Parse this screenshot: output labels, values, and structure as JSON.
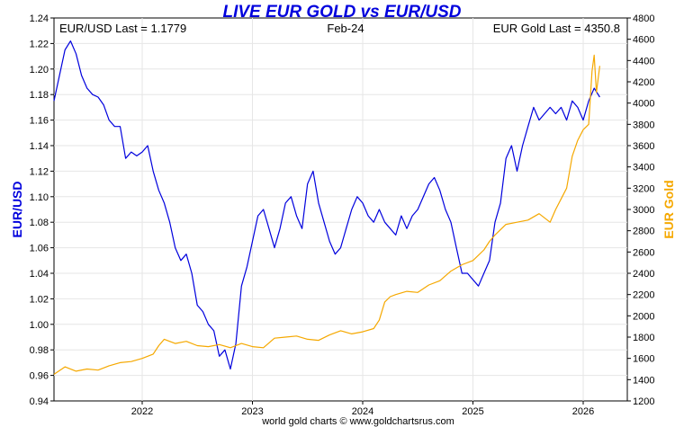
{
  "chart_data": {
    "type": "line",
    "title": "LIVE EUR GOLD vs EUR/USD",
    "period": "Feb-24",
    "footer": "world gold charts © www.goldchartsrus.com",
    "left_axis": {
      "label": "EUR/USD",
      "ylim": [
        0.94,
        1.24
      ],
      "ticks": [
        "0.94",
        "0.96",
        "0.98",
        "1.00",
        "1.02",
        "1.04",
        "1.06",
        "1.08",
        "1.10",
        "1.12",
        "1.14",
        "1.16",
        "1.18",
        "1.20",
        "1.22",
        "1.24"
      ],
      "color": "#0000dd"
    },
    "right_axis": {
      "label": "EUR Gold",
      "ylim": [
        1200,
        4800
      ],
      "ticks": [
        "1200",
        "1400",
        "1600",
        "1800",
        "2000",
        "2200",
        "2400",
        "2600",
        "2800",
        "3000",
        "3200",
        "3400",
        "3600",
        "3800",
        "4000",
        "4200",
        "4400",
        "4600",
        "4800"
      ],
      "color": "#f5a800"
    },
    "xlim": [
      2021.2,
      2026.4
    ],
    "x_ticks": [
      {
        "label": "2022",
        "value": 2022.0
      },
      {
        "label": "2023",
        "value": 2023.0
      },
      {
        "label": "2024",
        "value": 2024.0
      },
      {
        "label": "2025",
        "value": 2025.0
      },
      {
        "label": "2026",
        "value": 2026.0
      }
    ],
    "grid": true,
    "series": [
      {
        "name": "EUR/USD",
        "label": "EUR/USD Last = 1.1779",
        "axis": "left",
        "color": "#0000dd",
        "x": [
          2021.2,
          2021.25,
          2021.3,
          2021.35,
          2021.4,
          2021.45,
          2021.5,
          2021.55,
          2021.6,
          2021.65,
          2021.7,
          2021.75,
          2021.8,
          2021.85,
          2021.9,
          2021.95,
          2022.0,
          2022.05,
          2022.1,
          2022.15,
          2022.2,
          2022.25,
          2022.3,
          2022.35,
          2022.4,
          2022.45,
          2022.5,
          2022.55,
          2022.6,
          2022.65,
          2022.7,
          2022.75,
          2022.8,
          2022.85,
          2022.9,
          2022.95,
          2023.0,
          2023.05,
          2023.1,
          2023.15,
          2023.2,
          2023.25,
          2023.3,
          2023.35,
          2023.4,
          2023.45,
          2023.5,
          2023.55,
          2023.6,
          2023.65,
          2023.7,
          2023.75,
          2023.8,
          2023.85,
          2023.9,
          2023.95,
          2024.0,
          2024.05,
          2024.1,
          2024.15,
          2024.2,
          2024.25,
          2024.3,
          2024.35,
          2024.4,
          2024.45,
          2024.5,
          2024.55,
          2024.6,
          2024.65,
          2024.7,
          2024.75,
          2024.8,
          2024.85,
          2024.9,
          2024.95,
          2025.0,
          2025.05,
          2025.1,
          2025.15,
          2025.2,
          2025.25,
          2025.3,
          2025.35,
          2025.4,
          2025.45,
          2025.5,
          2025.55,
          2025.6,
          2025.65,
          2025.7,
          2025.75,
          2025.8,
          2025.85,
          2025.9,
          2025.95,
          2026.0,
          2026.05,
          2026.1,
          2026.15
        ],
        "values": [
          1.175,
          1.195,
          1.215,
          1.222,
          1.212,
          1.195,
          1.185,
          1.18,
          1.178,
          1.172,
          1.16,
          1.155,
          1.155,
          1.13,
          1.135,
          1.132,
          1.135,
          1.14,
          1.12,
          1.105,
          1.095,
          1.08,
          1.06,
          1.05,
          1.055,
          1.04,
          1.015,
          1.01,
          1.0,
          0.995,
          0.975,
          0.98,
          0.965,
          0.985,
          1.03,
          1.045,
          1.065,
          1.085,
          1.09,
          1.075,
          1.06,
          1.075,
          1.095,
          1.1,
          1.085,
          1.075,
          1.11,
          1.12,
          1.095,
          1.08,
          1.065,
          1.055,
          1.06,
          1.075,
          1.09,
          1.1,
          1.095,
          1.085,
          1.08,
          1.09,
          1.08,
          1.075,
          1.07,
          1.085,
          1.075,
          1.085,
          1.09,
          1.1,
          1.11,
          1.115,
          1.105,
          1.09,
          1.08,
          1.06,
          1.04,
          1.04,
          1.035,
          1.03,
          1.04,
          1.05,
          1.08,
          1.095,
          1.13,
          1.14,
          1.12,
          1.14,
          1.155,
          1.17,
          1.16,
          1.165,
          1.17,
          1.165,
          1.17,
          1.16,
          1.175,
          1.17,
          1.16,
          1.175,
          1.185,
          1.178
        ]
      },
      {
        "name": "EUR Gold",
        "label": "EUR Gold Last = 4350.8",
        "axis": "right",
        "color": "#f5a800",
        "x": [
          2021.2,
          2021.3,
          2021.4,
          2021.5,
          2021.6,
          2021.7,
          2021.8,
          2021.9,
          2022.0,
          2022.1,
          2022.15,
          2022.2,
          2022.3,
          2022.4,
          2022.5,
          2022.6,
          2022.7,
          2022.8,
          2022.9,
          2023.0,
          2023.1,
          2023.2,
          2023.3,
          2023.4,
          2023.5,
          2023.6,
          2023.7,
          2023.8,
          2023.9,
          2024.0,
          2024.1,
          2024.15,
          2024.2,
          2024.25,
          2024.3,
          2024.4,
          2024.5,
          2024.6,
          2024.7,
          2024.8,
          2024.9,
          2025.0,
          2025.1,
          2025.15,
          2025.2,
          2025.3,
          2025.4,
          2025.5,
          2025.6,
          2025.7,
          2025.75,
          2025.8,
          2025.85,
          2025.9,
          2025.95,
          2026.0,
          2026.05,
          2026.08,
          2026.1,
          2026.12,
          2026.15
        ],
        "values": [
          1450,
          1520,
          1480,
          1500,
          1490,
          1530,
          1560,
          1570,
          1600,
          1640,
          1720,
          1780,
          1740,
          1760,
          1720,
          1710,
          1730,
          1700,
          1740,
          1710,
          1700,
          1790,
          1800,
          1810,
          1780,
          1770,
          1820,
          1860,
          1830,
          1850,
          1880,
          1960,
          2130,
          2180,
          2200,
          2230,
          2220,
          2290,
          2330,
          2420,
          2480,
          2520,
          2620,
          2700,
          2760,
          2860,
          2880,
          2900,
          2960,
          2880,
          3000,
          3100,
          3200,
          3500,
          3650,
          3750,
          3800,
          4300,
          4450,
          4100,
          4350
        ]
      }
    ]
  }
}
